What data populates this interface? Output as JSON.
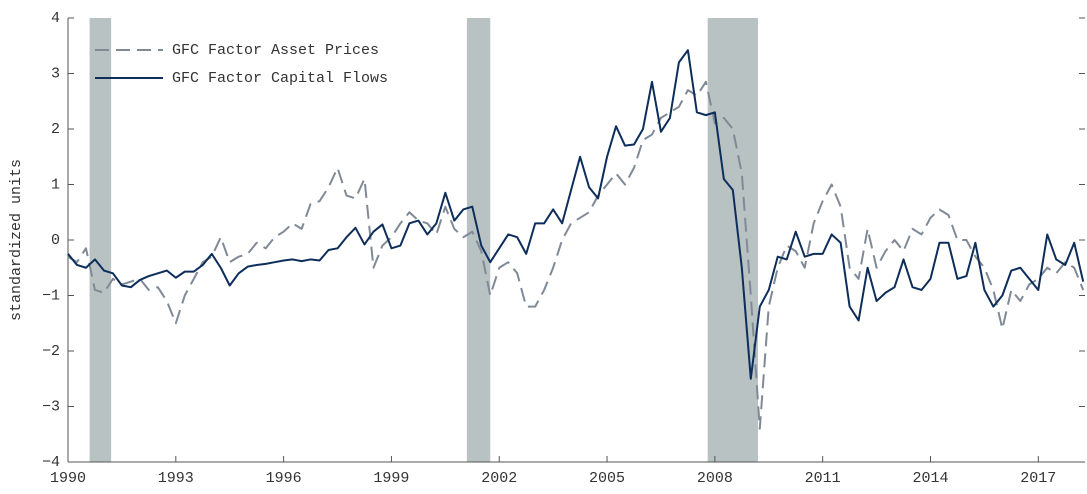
{
  "chart_data": {
    "type": "line",
    "y_label": "standardized units",
    "xlim": [
      1990,
      2018.3
    ],
    "ylim": [
      -4,
      4
    ],
    "xticks": [
      1990,
      1993,
      1996,
      1999,
      2002,
      2005,
      2008,
      2011,
      2014,
      2017
    ],
    "yticks": [
      {
        "value": -4,
        "label": "−4"
      },
      {
        "value": -3,
        "label": "−3"
      },
      {
        "value": -2,
        "label": "−2"
      },
      {
        "value": -1,
        "label": "−1"
      },
      0,
      1,
      2,
      3,
      4
    ],
    "shaded_periods": [
      [
        1990.6,
        1991.2
      ],
      [
        2001.1,
        2001.75
      ],
      [
        2007.8,
        2009.2
      ]
    ],
    "shade_color": "#b8c2c2",
    "legend": "upper left",
    "x": [
      1990,
      1990.25,
      1990.5,
      1990.75,
      1991,
      1991.25,
      1991.5,
      1991.75,
      1992,
      1992.25,
      1992.5,
      1992.75,
      1993,
      1993.25,
      1993.5,
      1993.75,
      1994,
      1994.25,
      1994.5,
      1994.75,
      1995,
      1995.25,
      1995.5,
      1995.75,
      1996,
      1996.25,
      1996.5,
      1996.75,
      1997,
      1997.25,
      1997.5,
      1997.75,
      1998,
      1998.25,
      1998.5,
      1998.75,
      1999,
      1999.25,
      1999.5,
      1999.75,
      2000,
      2000.25,
      2000.5,
      2000.75,
      2001,
      2001.25,
      2001.5,
      2001.75,
      2002,
      2002.25,
      2002.5,
      2002.75,
      2003,
      2003.25,
      2003.5,
      2003.75,
      2004,
      2004.25,
      2004.5,
      2004.75,
      2005,
      2005.25,
      2005.5,
      2005.75,
      2006,
      2006.25,
      2006.5,
      2006.75,
      2007,
      2007.25,
      2007.5,
      2007.75,
      2008,
      2008.25,
      2008.5,
      2008.75,
      2009,
      2009.25,
      2009.5,
      2009.75,
      2010,
      2010.25,
      2010.5,
      2010.75,
      2011,
      2011.25,
      2011.5,
      2011.75,
      2012,
      2012.25,
      2012.5,
      2012.75,
      2013,
      2013.25,
      2013.5,
      2013.75,
      2014,
      2014.25,
      2014.5,
      2014.75,
      2015,
      2015.25,
      2015.5,
      2015.75,
      2016,
      2016.25,
      2016.5,
      2016.75,
      2017,
      2017.25,
      2017.5,
      2017.75,
      2018,
      2018.25
    ],
    "series": [
      {
        "name": "GFC Factor Asset Prices",
        "color": "#7f8a96",
        "dashed": true,
        "values": [
          -0.3,
          -0.4,
          -0.15,
          -0.9,
          -0.95,
          -0.7,
          -0.8,
          -0.75,
          -0.7,
          -0.9,
          -0.85,
          -1.1,
          -1.5,
          -1.0,
          -0.7,
          -0.4,
          -0.3,
          0.05,
          -0.4,
          -0.3,
          -0.25,
          -0.05,
          -0.15,
          0.05,
          0.15,
          0.3,
          0.2,
          0.65,
          0.7,
          0.95,
          1.3,
          0.8,
          0.75,
          1.1,
          -0.5,
          -0.1,
          0.05,
          0.3,
          0.5,
          0.35,
          0.3,
          0.1,
          0.6,
          0.2,
          0.05,
          0.15,
          -0.2,
          -1.0,
          -0.5,
          -0.4,
          -0.6,
          -1.2,
          -1.2,
          -0.9,
          -0.5,
          0.0,
          0.3,
          0.4,
          0.5,
          0.8,
          1.0,
          1.2,
          1.0,
          1.3,
          1.8,
          1.9,
          2.2,
          2.3,
          2.4,
          2.7,
          2.6,
          2.85,
          2.1,
          2.2,
          2.0,
          1.2,
          -1.0,
          -3.4,
          -1.2,
          -0.5,
          -0.1,
          -0.2,
          -0.5,
          0.3,
          0.7,
          1.0,
          0.6,
          -0.5,
          -0.7,
          0.2,
          -0.5,
          -0.2,
          0.0,
          -0.2,
          0.2,
          0.1,
          0.4,
          0.55,
          0.45,
          0.0,
          0.0,
          -0.3,
          -0.5,
          -0.9,
          -1.6,
          -0.9,
          -1.1,
          -0.8,
          -0.7,
          -0.5,
          -0.6,
          -0.4,
          -0.5,
          -0.9
        ]
      },
      {
        "name": "GFC Factor Capital Flows",
        "color": "#0d2d5a",
        "dashed": false,
        "values": [
          -0.25,
          -0.45,
          -0.5,
          -0.35,
          -0.55,
          -0.6,
          -0.82,
          -0.85,
          -0.72,
          -0.65,
          -0.6,
          -0.55,
          -0.68,
          -0.57,
          -0.57,
          -0.45,
          -0.25,
          -0.5,
          -0.82,
          -0.6,
          -0.48,
          -0.45,
          -0.43,
          -0.4,
          -0.37,
          -0.35,
          -0.38,
          -0.35,
          -0.37,
          -0.18,
          -0.15,
          0.05,
          0.22,
          -0.08,
          0.15,
          0.28,
          -0.15,
          -0.1,
          0.3,
          0.35,
          0.1,
          0.3,
          0.85,
          0.35,
          0.55,
          0.6,
          -0.1,
          -0.4,
          -0.15,
          0.1,
          0.05,
          -0.25,
          0.3,
          0.3,
          0.55,
          0.3,
          0.9,
          1.5,
          0.95,
          0.75,
          1.5,
          2.05,
          1.7,
          1.72,
          2.0,
          2.85,
          1.95,
          2.2,
          3.2,
          3.42,
          2.3,
          2.25,
          2.3,
          1.1,
          0.9,
          -0.5,
          -2.5,
          -1.2,
          -0.9,
          -0.3,
          -0.35,
          0.15,
          -0.3,
          -0.25,
          -0.25,
          0.1,
          -0.05,
          -1.2,
          -1.45,
          -0.5,
          -1.1,
          -0.95,
          -0.85,
          -0.35,
          -0.85,
          -0.9,
          -0.7,
          -0.05,
          -0.05,
          -0.7,
          -0.65,
          -0.05,
          -0.9,
          -1.2,
          -1.0,
          -0.55,
          -0.5,
          -0.7,
          -0.9,
          0.1,
          -0.35,
          -0.45,
          -0.05,
          -0.75
        ]
      }
    ]
  }
}
